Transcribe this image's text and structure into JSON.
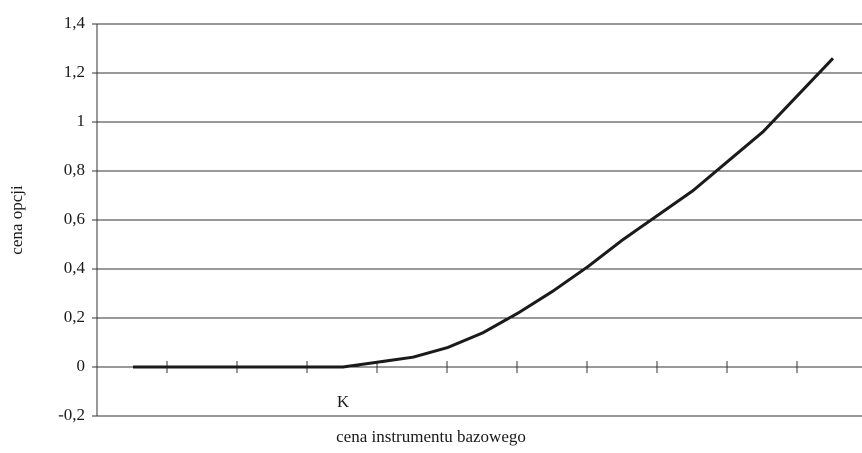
{
  "chart_data": {
    "type": "line",
    "x_label": "cena instrumentu bazowego",
    "y_label": "cena opcji",
    "categories": [
      null,
      null,
      null,
      null,
      null,
      null,
      "K",
      null,
      null,
      null,
      null,
      null,
      null,
      null,
      null,
      null,
      null,
      null,
      null,
      null,
      null
    ],
    "series": [
      {
        "name": "cena opcji",
        "color": "#1a1a1a",
        "values": [
          0,
          0,
          0,
          0,
          0,
          0,
          0,
          0.02,
          0.04,
          0.08,
          0.14,
          0.22,
          0.31,
          0.41,
          0.52,
          0.62,
          0.72,
          0.84,
          0.96,
          1.11,
          1.26
        ]
      }
    ],
    "ylim": [
      -0.2,
      1.4
    ],
    "yticks": [
      {
        "value": -0.2,
        "label": "-0,2"
      },
      0,
      {
        "value": 0.2,
        "label": "0,2"
      },
      {
        "value": 0.4,
        "label": "0,4"
      },
      {
        "value": 0.6,
        "label": "0,6"
      },
      {
        "value": 0.8,
        "label": "0,8"
      },
      1,
      {
        "value": 1.2,
        "label": "1,2"
      },
      {
        "value": 1.4,
        "label": "1,4"
      }
    ],
    "grid": true
  }
}
